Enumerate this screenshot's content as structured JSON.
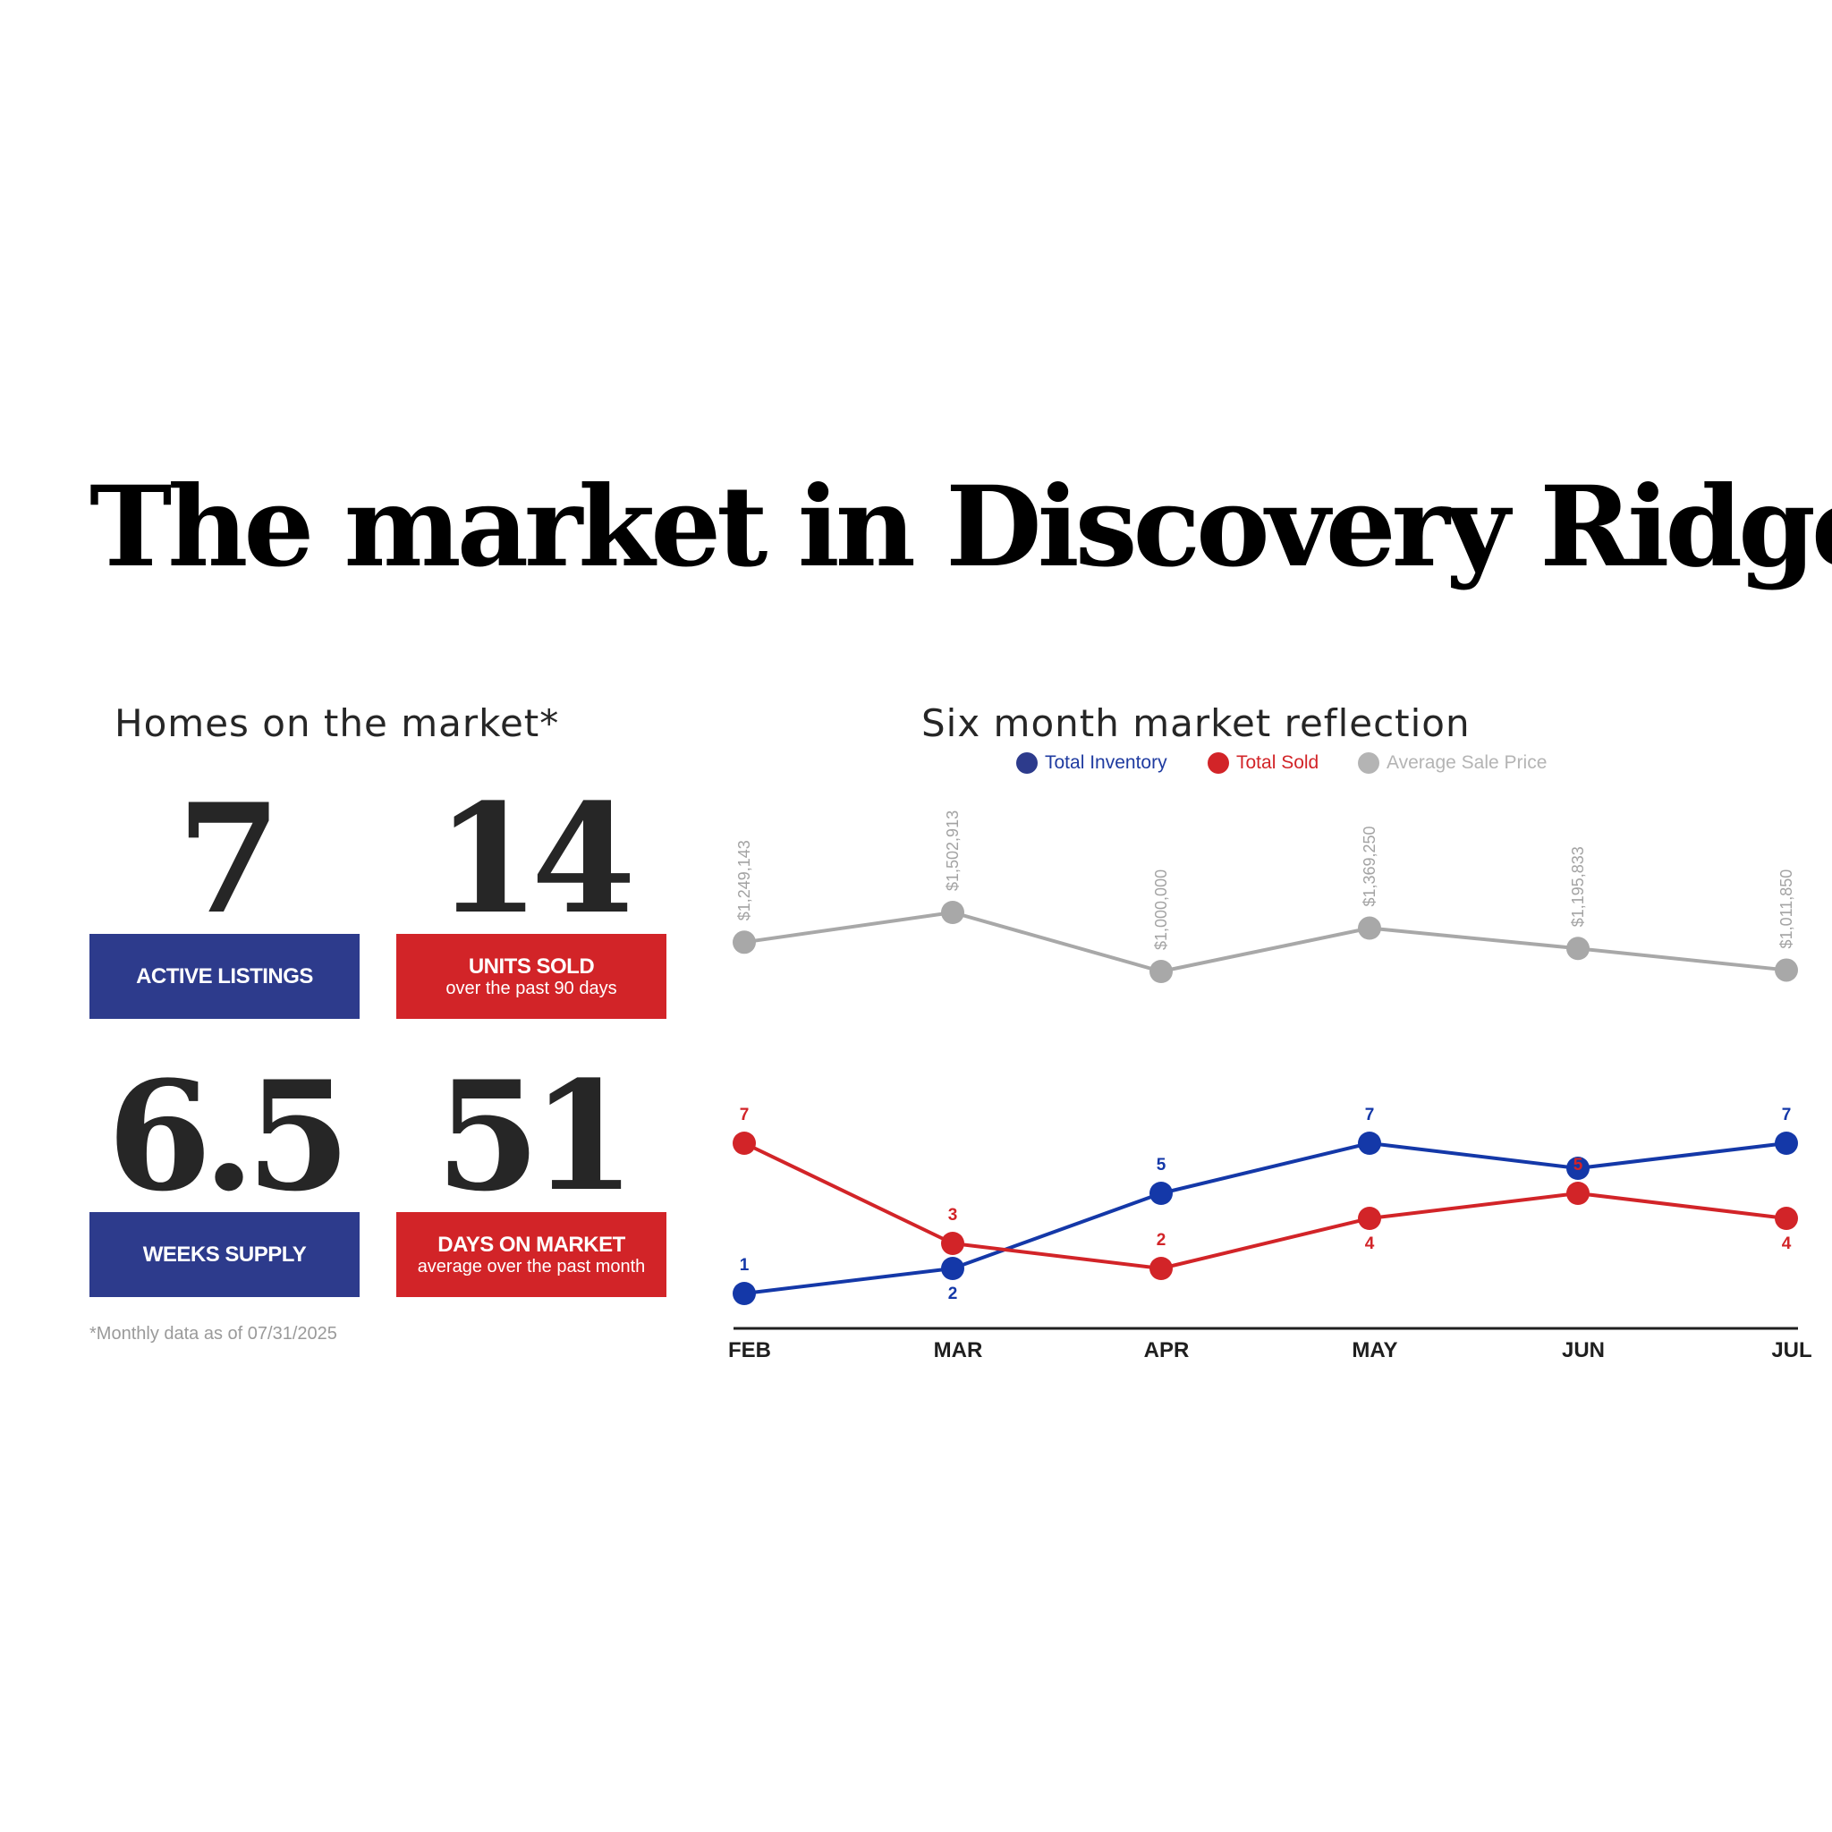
{
  "headline": {
    "lead": "The market in ",
    "place": "Discovery Ridge"
  },
  "homes_section": {
    "title": "Homes on the market*",
    "stats": [
      {
        "value": "7",
        "label": "ACTIVE LISTINGS",
        "sublabel": "",
        "color": "#2d3b8c"
      },
      {
        "value": "14",
        "label": "UNITS SOLD",
        "sublabel": "over the past 90 days",
        "color": "#d22428"
      },
      {
        "value": "6.5",
        "label": "WEEKS SUPPLY",
        "sublabel": "",
        "color": "#2d3b8c"
      },
      {
        "value": "51",
        "label": "DAYS ON MARKET",
        "sublabel": "average over the past month",
        "color": "#d22428"
      }
    ],
    "footnote": "*Monthly data as of 07/31/2025"
  },
  "chart_section": {
    "title": "Six month market reflection",
    "legend": [
      {
        "label": "Total Inventory",
        "color": "#1f3ba0"
      },
      {
        "label": "Total Sold",
        "color": "#d22428"
      },
      {
        "label": "Average Sale Price",
        "color": "#b4b4b4"
      }
    ]
  },
  "chart_data": {
    "type": "line",
    "title": "Six month market reflection",
    "categories": [
      "FEB",
      "MAR",
      "APR",
      "MAY",
      "JUN",
      "JUL"
    ],
    "series": [
      {
        "name": "Total Inventory",
        "color": "#1438a8",
        "values": [
          1,
          2,
          5,
          7,
          6,
          7
        ],
        "labels": [
          "1",
          "2",
          "5",
          "7",
          "6",
          "7"
        ]
      },
      {
        "name": "Total Sold",
        "color": "#d22428",
        "values": [
          7,
          3,
          2,
          4,
          5,
          4
        ],
        "labels": [
          "7",
          "3",
          "2",
          "4",
          "5",
          "4"
        ]
      },
      {
        "name": "Average Sale Price",
        "color": "#a8a8a8",
        "values": [
          1249143,
          1502913,
          1000000,
          1369250,
          1195833,
          1011850
        ],
        "labels": [
          "$1,249,143",
          "$1,502,913",
          "$1,000,000",
          "$1,369,250",
          "$1,195,833",
          "$1,011,850"
        ]
      }
    ],
    "legend": "top-center",
    "grid": false
  }
}
